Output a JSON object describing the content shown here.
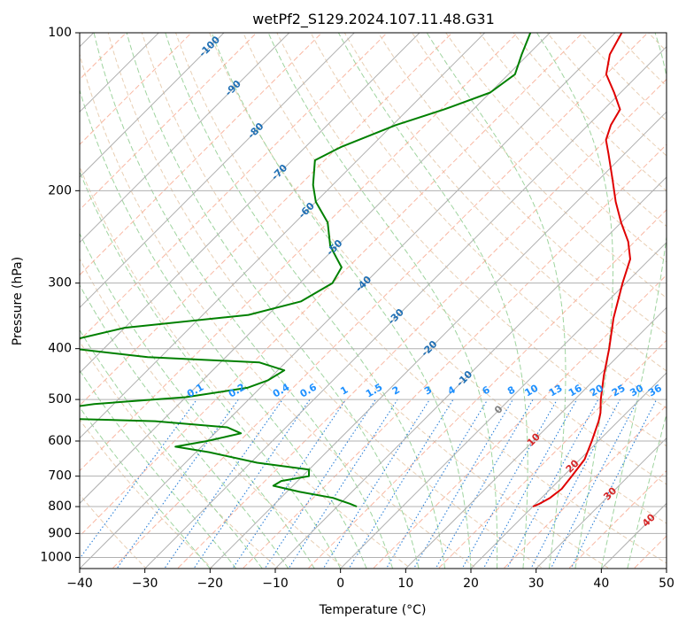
{
  "chart_data": {
    "type": "skew-t",
    "title": "wetPf2_S129.2024.107.11.48.G31",
    "xlabel": "Temperature (°C)",
    "ylabel": "Pressure (hPa)",
    "xlim": [
      -40,
      50
    ],
    "ylim": [
      1050,
      100
    ],
    "y_scale": "log",
    "grid": true,
    "x_ticks": [
      -40,
      -30,
      -20,
      -10,
      0,
      10,
      20,
      30,
      40,
      50
    ],
    "y_ticks": [
      100,
      200,
      300,
      400,
      500,
      600,
      700,
      800,
      900,
      1000
    ],
    "skew_deg": 45,
    "series": [
      {
        "name": "",
        "variable": "temperature",
        "color": "#e00000",
        "points": [
          {
            "p": 800,
            "t": 20.0
          },
          {
            "p": 790,
            "t": 20.6
          },
          {
            "p": 770,
            "t": 21.3
          },
          {
            "p": 740,
            "t": 21.7
          },
          {
            "p": 700,
            "t": 21.3
          },
          {
            "p": 650,
            "t": 20.7
          },
          {
            "p": 600,
            "t": 19.0
          },
          {
            "p": 550,
            "t": 17.0
          },
          {
            "p": 530,
            "t": 16.0
          },
          {
            "p": 500,
            "t": 14.0
          },
          {
            "p": 450,
            "t": 10.8
          },
          {
            "p": 400,
            "t": 7.5
          },
          {
            "p": 350,
            "t": 3.5
          },
          {
            "p": 300,
            "t": -0.5
          },
          {
            "p": 270,
            "t": -3.0
          },
          {
            "p": 250,
            "t": -6.0
          },
          {
            "p": 230,
            "t": -10.0
          },
          {
            "p": 210,
            "t": -14.0
          },
          {
            "p": 190,
            "t": -18.0
          },
          {
            "p": 170,
            "t": -22.5
          },
          {
            "p": 160,
            "t": -25.0
          },
          {
            "p": 150,
            "t": -26.5
          },
          {
            "p": 140,
            "t": -27.5
          },
          {
            "p": 130,
            "t": -31.0
          },
          {
            "p": 120,
            "t": -35.0
          },
          {
            "p": 110,
            "t": -37.5
          },
          {
            "p": 100,
            "t": -39.0
          }
        ]
      },
      {
        "name": "",
        "variable": "dewpoint",
        "color": "#008000",
        "points": [
          {
            "p": 800,
            "t": -7.0
          },
          {
            "p": 790,
            "t": -8.5
          },
          {
            "p": 770,
            "t": -12.0
          },
          {
            "p": 750,
            "t": -18.0
          },
          {
            "p": 730,
            "t": -23.0
          },
          {
            "p": 715,
            "t": -22.5
          },
          {
            "p": 700,
            "t": -19.0
          },
          {
            "p": 680,
            "t": -20.0
          },
          {
            "p": 660,
            "t": -29.0
          },
          {
            "p": 630,
            "t": -38.0
          },
          {
            "p": 615,
            "t": -44.0
          },
          {
            "p": 600,
            "t": -40.0
          },
          {
            "p": 580,
            "t": -36.0
          },
          {
            "p": 565,
            "t": -39.0
          },
          {
            "p": 550,
            "t": -51.0
          },
          {
            "p": 540,
            "t": -75.0
          },
          {
            "p": 510,
            "t": -63.0
          },
          {
            "p": 495,
            "t": -50.0
          },
          {
            "p": 475,
            "t": -42.0
          },
          {
            "p": 460,
            "t": -40.0
          },
          {
            "p": 440,
            "t": -39.0
          },
          {
            "p": 425,
            "t": -44.0
          },
          {
            "p": 415,
            "t": -62.0
          },
          {
            "p": 395,
            "t": -79.0
          },
          {
            "p": 365,
            "t": -70.0
          },
          {
            "p": 345,
            "t": -53.0
          },
          {
            "p": 325,
            "t": -47.0
          },
          {
            "p": 300,
            "t": -45.0
          },
          {
            "p": 280,
            "t": -46.0
          },
          {
            "p": 255,
            "t": -51.0
          },
          {
            "p": 230,
            "t": -55.0
          },
          {
            "p": 210,
            "t": -60.0
          },
          {
            "p": 195,
            "t": -63.0
          },
          {
            "p": 175,
            "t": -66.5
          },
          {
            "p": 165,
            "t": -64.5
          },
          {
            "p": 150,
            "t": -59.5
          },
          {
            "p": 140,
            "t": -54.5
          },
          {
            "p": 130,
            "t": -50.0
          },
          {
            "p": 120,
            "t": -49.0
          },
          {
            "p": 110,
            "t": -51.0
          },
          {
            "p": 100,
            "t": -53.0
          }
        ]
      }
    ],
    "isotherm_labels": [
      {
        "text": "-100",
        "t": -100
      },
      {
        "text": "-90",
        "t": -90
      },
      {
        "text": "-80",
        "t": -80
      },
      {
        "text": "-70",
        "t": -70
      },
      {
        "text": "-60",
        "t": -60
      },
      {
        "text": "-50",
        "t": -50
      },
      {
        "text": "-40",
        "t": -40
      },
      {
        "text": "-30",
        "t": -30
      },
      {
        "text": "-20",
        "t": -20
      },
      {
        "text": "-10",
        "t": -10
      },
      {
        "text": "0",
        "t": 0
      },
      {
        "text": "10",
        "t": 10
      },
      {
        "text": "20",
        "t": 20
      },
      {
        "text": "30",
        "t": 30
      },
      {
        "text": "40",
        "t": 40
      }
    ],
    "mixing_ratio_labels": [
      "0.1",
      "0.2",
      "0.4",
      "0.6",
      "1",
      "1.5",
      "2",
      "3",
      "4",
      "6",
      "8",
      "10",
      "13",
      "16",
      "20",
      "25",
      "30",
      "36"
    ],
    "colors": {
      "dry_adiabat": "#e8cfb4",
      "moist_adiabat": "#9fd49f",
      "isotherm_dashed": "#f8a58c",
      "mixing_ratio": "#2a7fd8",
      "isotherm_label_cold": "#1f6fb4",
      "isotherm_label_zero": "#7f7f7f",
      "isotherm_label_warm": "#d62728",
      "mixing_ratio_label": "#1e90ff"
    }
  }
}
